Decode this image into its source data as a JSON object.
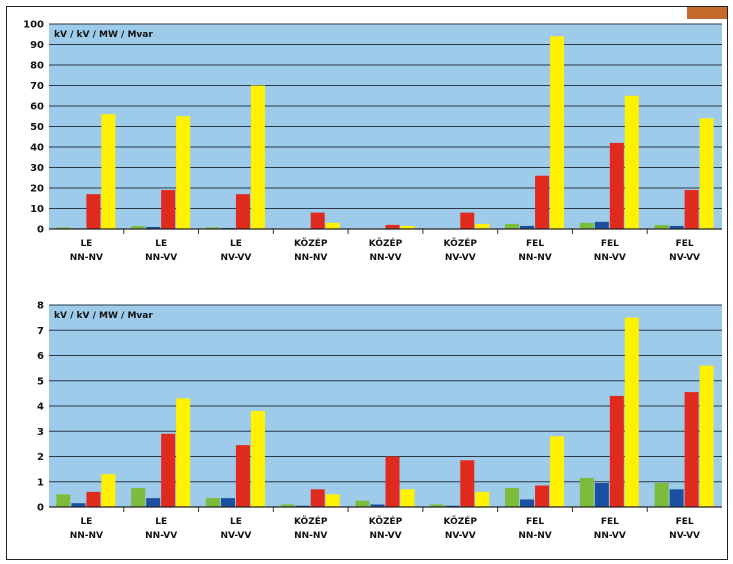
{
  "colors": {
    "plot_background": "#9dcbe9",
    "gridline": "#2a3a4a",
    "series_green": "#7dbb3c",
    "series_blue": "#1b4fa0",
    "series_red": "#e02a1d",
    "series_yellow": "#fff200",
    "corner_tab": "#c56a2a"
  },
  "chart_data": [
    {
      "type": "bar",
      "annotation": "kV / kV / MW / Mvar",
      "categories": [
        [
          "LE",
          "NN-NV"
        ],
        [
          "LE",
          "NN-VV"
        ],
        [
          "LE",
          "NV-VV"
        ],
        [
          "KÖZÉP",
          "NN-NV"
        ],
        [
          "KÖZÉP",
          "NN-VV"
        ],
        [
          "KÖZÉP",
          "NV-VV"
        ],
        [
          "FEL",
          "NN-NV"
        ],
        [
          "FEL",
          "NN-VV"
        ],
        [
          "FEL",
          "NV-VV"
        ]
      ],
      "ylim": [
        0,
        100
      ],
      "yticks": [
        0,
        10,
        20,
        30,
        40,
        50,
        60,
        70,
        80,
        90,
        100
      ],
      "grid": true,
      "series": [
        {
          "color": "green",
          "values": [
            0.8,
            1.5,
            0.8,
            0.2,
            0.2,
            0.2,
            2.5,
            3.0,
            2.0
          ]
        },
        {
          "color": "blue",
          "values": [
            0.3,
            1.0,
            0.5,
            0.2,
            0.2,
            0.2,
            1.5,
            3.5,
            1.5
          ]
        },
        {
          "color": "red",
          "values": [
            17,
            19,
            17,
            8,
            2,
            8,
            26,
            42,
            19
          ]
        },
        {
          "color": "yellow",
          "values": [
            56,
            55,
            70,
            3,
            1.5,
            2.5,
            94,
            65,
            54
          ]
        }
      ]
    },
    {
      "type": "bar",
      "annotation": "kV / kV / MW / Mvar",
      "categories": [
        [
          "LE",
          "NN-NV"
        ],
        [
          "LE",
          "NN-VV"
        ],
        [
          "LE",
          "NV-VV"
        ],
        [
          "KÖZÉP",
          "NN-NV"
        ],
        [
          "KÖZÉP",
          "NN-VV"
        ],
        [
          "KÖZÉP",
          "NV-VV"
        ],
        [
          "FEL",
          "NN-NV"
        ],
        [
          "FEL",
          "NN-VV"
        ],
        [
          "FEL",
          "NV-VV"
        ]
      ],
      "ylim": [
        0,
        8
      ],
      "yticks": [
        0,
        1,
        2,
        3,
        4,
        5,
        6,
        7,
        8
      ],
      "grid": true,
      "series": [
        {
          "color": "green",
          "values": [
            0.5,
            0.75,
            0.35,
            0.1,
            0.25,
            0.1,
            0.75,
            1.15,
            0.95
          ]
        },
        {
          "color": "blue",
          "values": [
            0.15,
            0.35,
            0.35,
            0.05,
            0.1,
            0.05,
            0.3,
            0.95,
            0.7
          ]
        },
        {
          "color": "red",
          "values": [
            0.6,
            2.9,
            2.45,
            0.7,
            2.0,
            1.85,
            0.85,
            4.4,
            4.55
          ]
        },
        {
          "color": "yellow",
          "values": [
            1.3,
            4.3,
            3.8,
            0.5,
            0.7,
            0.6,
            2.8,
            7.5,
            5.6
          ]
        }
      ]
    }
  ]
}
